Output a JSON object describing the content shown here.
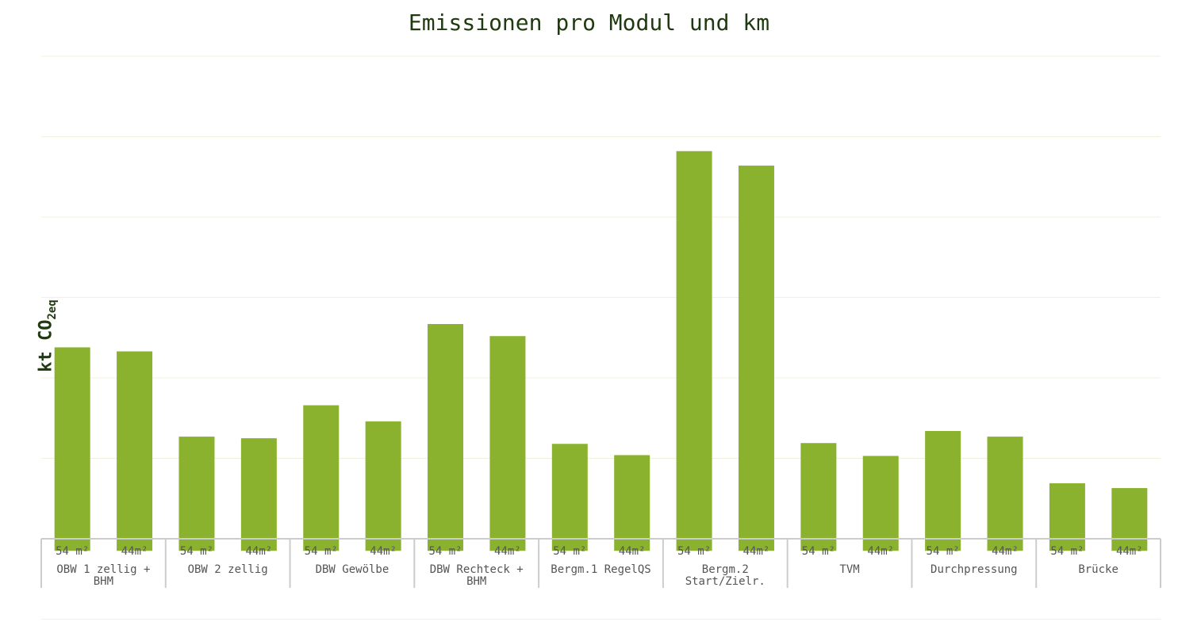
{
  "colors": {
    "bar": "#8ab22e",
    "grid": "#f0f0df",
    "axis": "#cccccc",
    "title": "#1f3a0f",
    "label": "#555555"
  },
  "chart_data": {
    "type": "bar",
    "title": "Emissionen pro Modul und km",
    "ylabel_main": "kt CO",
    "ylabel_sub": "2eq",
    "xlabel": "",
    "ylim": [
      -0.15,
      6
    ],
    "gridlines": [
      -1,
      0,
      1,
      2,
      3,
      4,
      5,
      6
    ],
    "grid": true,
    "groups": [
      {
        "label": [
          "OBW 1 zellig +",
          "BHM"
        ],
        "bars": [
          {
            "label": "54 m²",
            "value": 2.38
          },
          {
            "label": "44m²",
            "value": 2.33
          }
        ]
      },
      {
        "label": [
          "OBW 2 zellig"
        ],
        "bars": [
          {
            "label": "54 m²",
            "value": 1.27
          },
          {
            "label": "44m²",
            "value": 1.25
          }
        ]
      },
      {
        "label": [
          "DBW Gewölbe"
        ],
        "bars": [
          {
            "label": "54 m²",
            "value": 1.66
          },
          {
            "label": "44m²",
            "value": 1.46
          }
        ]
      },
      {
        "label": [
          "DBW Rechteck +",
          "BHM"
        ],
        "bars": [
          {
            "label": "54 m²",
            "value": 2.67
          },
          {
            "label": "44m²",
            "value": 2.52
          }
        ]
      },
      {
        "label": [
          "Bergm.1 RegelQS"
        ],
        "bars": [
          {
            "label": "54 m²",
            "value": 1.18
          },
          {
            "label": "44m²",
            "value": 1.04
          }
        ]
      },
      {
        "label": [
          "Bergm.2",
          "Start/Zielr."
        ],
        "bars": [
          {
            "label": "54 m²",
            "value": 4.82
          },
          {
            "label": "44m²",
            "value": 4.64
          }
        ]
      },
      {
        "label": [
          "TVM"
        ],
        "bars": [
          {
            "label": "54 m²",
            "value": 1.19
          },
          {
            "label": "44m²",
            "value": 1.03
          }
        ]
      },
      {
        "label": [
          "Durchpressung"
        ],
        "bars": [
          {
            "label": "54 m²",
            "value": 1.34
          },
          {
            "label": "44m²",
            "value": 1.27
          }
        ]
      },
      {
        "label": [
          "Brücke"
        ],
        "bars": [
          {
            "label": "54 m²",
            "value": 0.69
          },
          {
            "label": "44m²",
            "value": 0.63
          }
        ]
      }
    ]
  }
}
